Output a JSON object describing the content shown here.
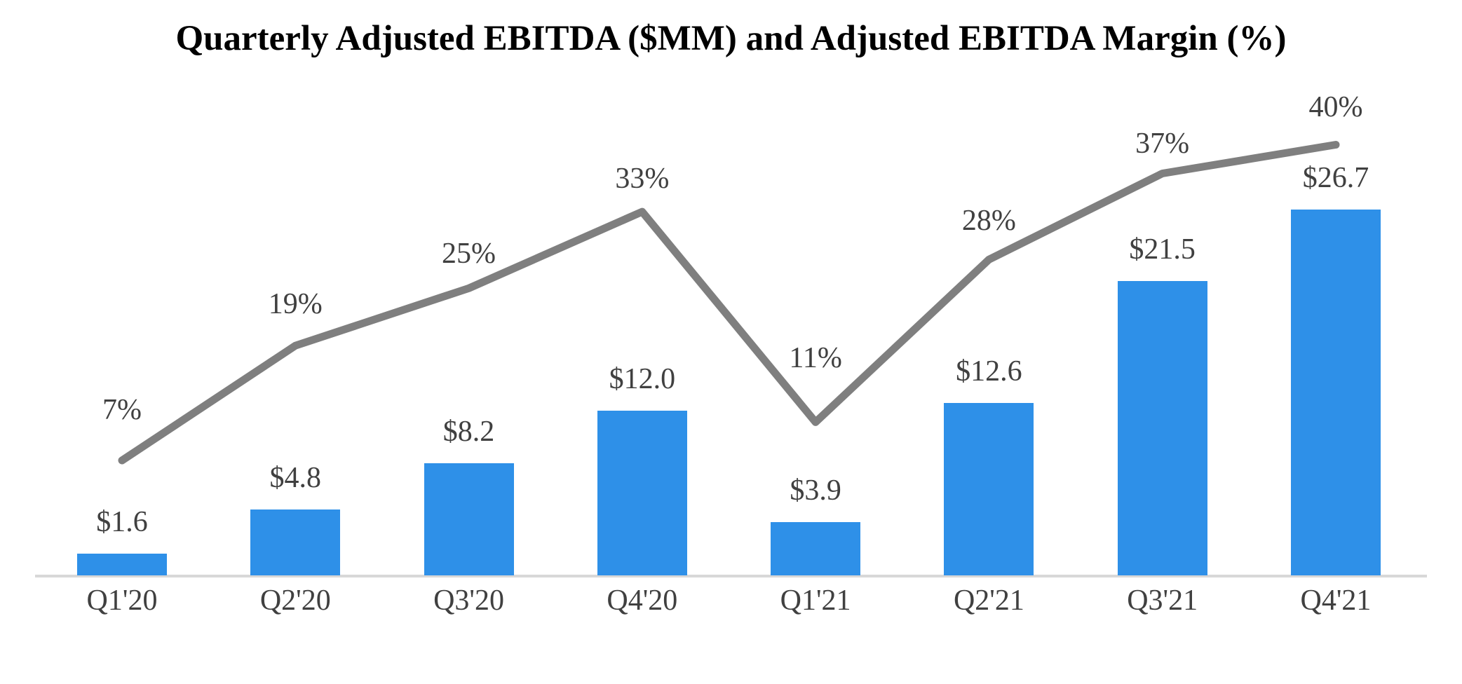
{
  "title": "Quarterly Adjusted EBITDA ($MM) and Adjusted EBITDA Margin (%)",
  "colors": {
    "bar": "#2e90e8",
    "line": "#7f7f7f",
    "data_label": "#404040",
    "axis_line": "#d8d8d8",
    "title": "#000000",
    "background": "#ffffff"
  },
  "chart_data": {
    "type": "combo",
    "categories": [
      "Q1'20",
      "Q2'20",
      "Q3'20",
      "Q4'20",
      "Q1'21",
      "Q2'21",
      "Q3'21",
      "Q4'21"
    ],
    "series": [
      {
        "name": "Adjusted EBITDA ($MM)",
        "type": "bar",
        "values": [
          1.6,
          4.8,
          8.2,
          12.0,
          3.9,
          12.6,
          21.5,
          26.7
        ],
        "labels": [
          "$1.6",
          "$4.8",
          "$8.2",
          "$12.0",
          "$3.9",
          "$12.6",
          "$21.5",
          "$26.7"
        ]
      },
      {
        "name": "Adjusted EBITDA Margin (%)",
        "type": "line",
        "values": [
          7,
          19,
          25,
          33,
          11,
          28,
          37,
          40
        ],
        "labels": [
          "7%",
          "19%",
          "25%",
          "33%",
          "11%",
          "28%",
          "37%",
          "40%"
        ]
      }
    ],
    "title": "Quarterly Adjusted EBITDA ($MM) and Adjusted EBITDA Margin (%)",
    "xlabel": "",
    "ylabel": "",
    "legend": "none",
    "gridlines": "off",
    "data_labels": "above points and above bars"
  }
}
